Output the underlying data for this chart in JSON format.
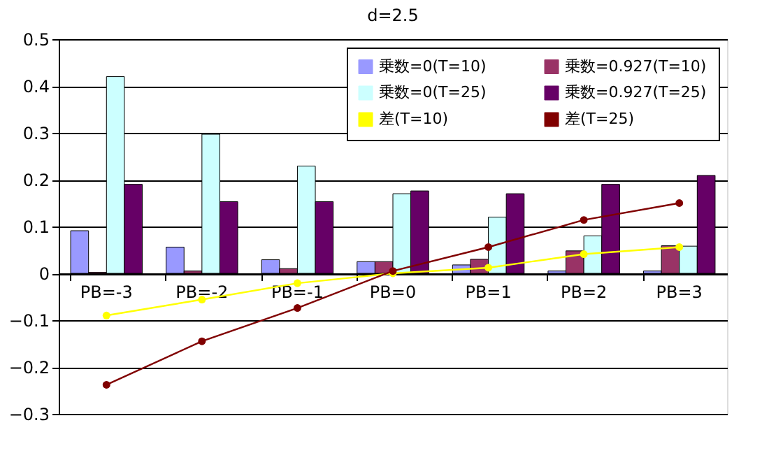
{
  "chart_data": {
    "type": "bar",
    "title": "d=2.5",
    "categories": [
      "PB=-3",
      "PB=-2",
      "PB=-1",
      "PB=0",
      "PB=1",
      "PB=2",
      "PB=3"
    ],
    "series": [
      {
        "name": "乗数=0(T=10)",
        "color": "#9999ff",
        "values": [
          0.091,
          0.056,
          0.029,
          0.025,
          0.018,
          0.005,
          0.005
        ]
      },
      {
        "name": "乗数=0.927(T=10)",
        "color": "#993366",
        "values": [
          0.002,
          0.005,
          0.01,
          0.025,
          0.03,
          0.048,
          0.059
        ]
      },
      {
        "name": "乗数=0(T=25)",
        "color": "#ccffff",
        "values": [
          0.42,
          0.297,
          0.229,
          0.17,
          0.12,
          0.08,
          0.058
        ]
      },
      {
        "name": "乗数=0.927(T=25)",
        "color": "#660066",
        "values": [
          0.19,
          0.153,
          0.153,
          0.176,
          0.17,
          0.19,
          0.209
        ]
      },
      {
        "name": "差(T=10)",
        "type": "line",
        "marker": "circle",
        "color": "#ffff00",
        "values": [
          -0.09,
          -0.056,
          -0.021,
          0.0,
          0.012,
          0.041,
          0.056
        ]
      },
      {
        "name": "差(T=25)",
        "type": "line",
        "marker": "circle",
        "color": "#800000",
        "values": [
          -0.238,
          -0.145,
          -0.074,
          0.005,
          0.056,
          0.114,
          0.15
        ]
      }
    ],
    "ylim": [
      -0.3,
      0.5
    ],
    "yticks": [
      -0.3,
      -0.2,
      -0.1,
      0,
      0.1,
      0.2,
      0.3,
      0.4,
      0.5
    ],
    "grid": "y",
    "legend": "top right"
  }
}
